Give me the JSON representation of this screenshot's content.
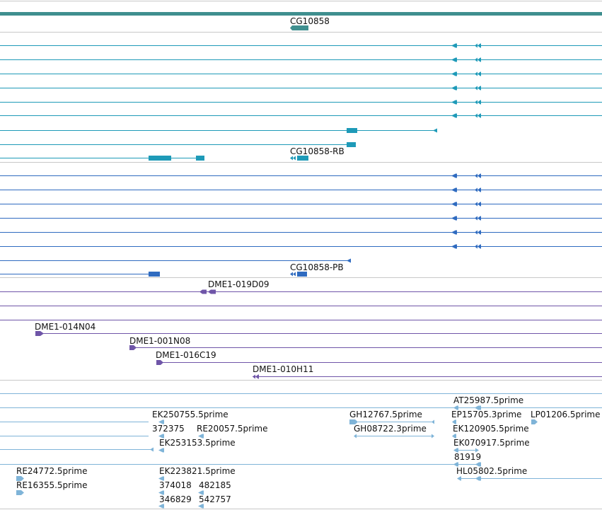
{
  "colors": {
    "gene_bar": "#3f8f8f",
    "transcript": "#1e9ab8",
    "transcript_pb": "#2f6bc0",
    "clone": "#6f55a8",
    "est": "#7fb4d8",
    "divider": "#c8c8c8"
  },
  "tracks": {
    "gene": {
      "label": "CG10858"
    },
    "transcripts_ra": {
      "label": "CG10858-RB"
    },
    "transcripts_pb": {
      "label": "CG10858-PB"
    },
    "clones": [
      {
        "label": "DME1-019D09"
      },
      {
        "label": "DME1-014N04"
      },
      {
        "label": "DME1-001N08"
      },
      {
        "label": "DME1-016C19"
      },
      {
        "label": "DME1-010H11"
      }
    ],
    "ests": [
      {
        "label": "AT25987.5prime"
      },
      {
        "label": "EK250755.5prime"
      },
      {
        "label": "GH12767.5prime"
      },
      {
        "label": "EP15705.3prime"
      },
      {
        "label": "LP01206.5prime"
      },
      {
        "label": "372375"
      },
      {
        "label": "RE20057.5prime"
      },
      {
        "label": "GH08722.3prime"
      },
      {
        "label": "EK120905.5prime"
      },
      {
        "label": "EK253153.5prime"
      },
      {
        "label": "EK070917.5prime"
      },
      {
        "label": "81919"
      },
      {
        "label": "RE24772.5prime"
      },
      {
        "label": "EK223821.5prime"
      },
      {
        "label": "HL05802.5prime"
      },
      {
        "label": "RE16355.5prime"
      },
      {
        "label": "374018"
      },
      {
        "label": "482185"
      },
      {
        "label": "346829"
      },
      {
        "label": "542757"
      }
    ]
  }
}
